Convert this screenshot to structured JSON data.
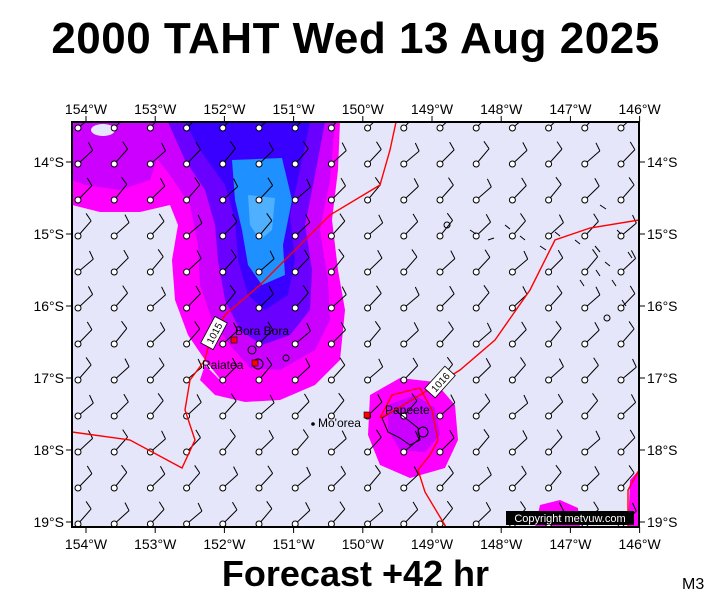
{
  "header": {
    "title": "2000 TAHT Wed 13 Aug 2025"
  },
  "footer": {
    "forecast": "Forecast +42 hr",
    "model": "M3"
  },
  "map": {
    "lon_labels": [
      "154°W",
      "153°W",
      "152°W",
      "151°W",
      "150°W",
      "149°W",
      "148°W",
      "147°W",
      "146°W"
    ],
    "lat_labels": [
      "14°S",
      "15°S",
      "16°S",
      "17°S",
      "18°S",
      "19°S"
    ],
    "isobars": [
      "1015",
      "1016"
    ],
    "places": [
      "Bora Bora",
      "Raiatea",
      "Mo'orea",
      "Papeete"
    ],
    "copyright": "Copyright metvuw.com",
    "colors": {
      "background": "#e6e6fa",
      "rain_light": "#ff00ff",
      "rain_mid": "#cc00ff",
      "rain_heavy": "#6a00ff",
      "rain_core": "#3a00ff",
      "rain_peak": "#1e90ff",
      "isobar": "#ff0000"
    }
  }
}
